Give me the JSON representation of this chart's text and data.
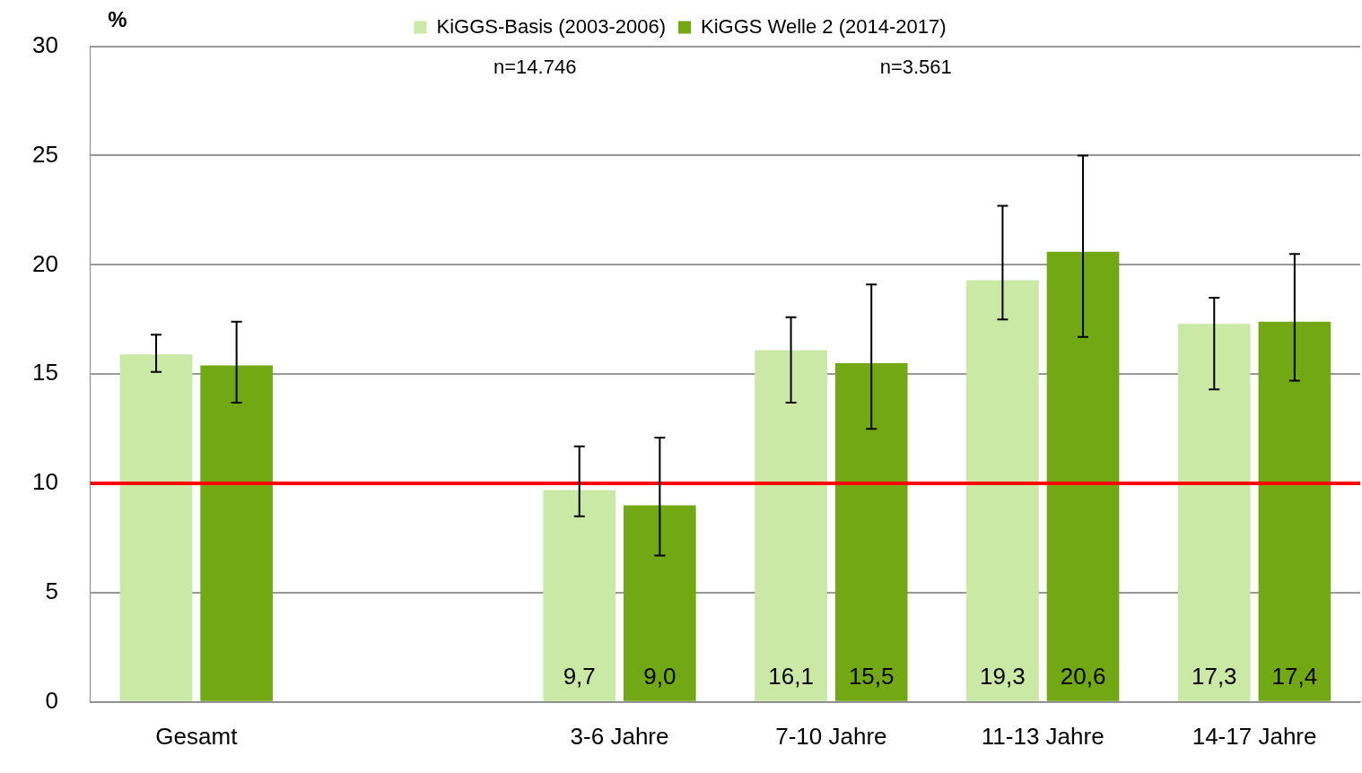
{
  "chart_data": {
    "type": "bar",
    "ylabel": "%",
    "categories": [
      "Gesamt",
      null,
      "3-6 Jahre",
      "7-10 Jahre",
      "11-13 Jahre",
      "14-17 Jahre"
    ],
    "series": [
      {
        "name": "KiGGS-Basis (2003-2006)",
        "color": "#c9e9a4",
        "values": [
          15.9,
          null,
          9.7,
          16.1,
          19.3,
          17.3
        ],
        "errors": [
          [
            15.1,
            16.8
          ],
          null,
          [
            8.5,
            11.7
          ],
          [
            13.7,
            17.6
          ],
          [
            17.5,
            22.7
          ],
          [
            14.3,
            18.5
          ]
        ],
        "value_labels": [
          null,
          null,
          "9,7",
          "16,1",
          "19,3",
          "17,3"
        ]
      },
      {
        "name": "KiGGS Welle 2 (2014-2017)",
        "color": "#72a814",
        "values": [
          15.4,
          null,
          9.0,
          15.5,
          20.6,
          17.4
        ],
        "errors": [
          [
            13.7,
            17.4
          ],
          null,
          [
            6.7,
            12.1
          ],
          [
            12.5,
            19.1
          ],
          [
            16.7,
            25.0
          ],
          [
            14.7,
            20.5
          ]
        ],
        "value_labels": [
          null,
          null,
          "9,0",
          "15,5",
          "20,6",
          "17,4"
        ]
      }
    ],
    "ylim": [
      0,
      30
    ],
    "yticks": [
      0,
      5,
      10,
      15,
      20,
      25,
      30
    ],
    "grid": "y",
    "legend": "top",
    "ref_lines": [
      {
        "axis": "y",
        "value": 10,
        "color": "#ff0000"
      }
    ],
    "annotations": [
      "n=14.746",
      "n=3.561"
    ]
  }
}
